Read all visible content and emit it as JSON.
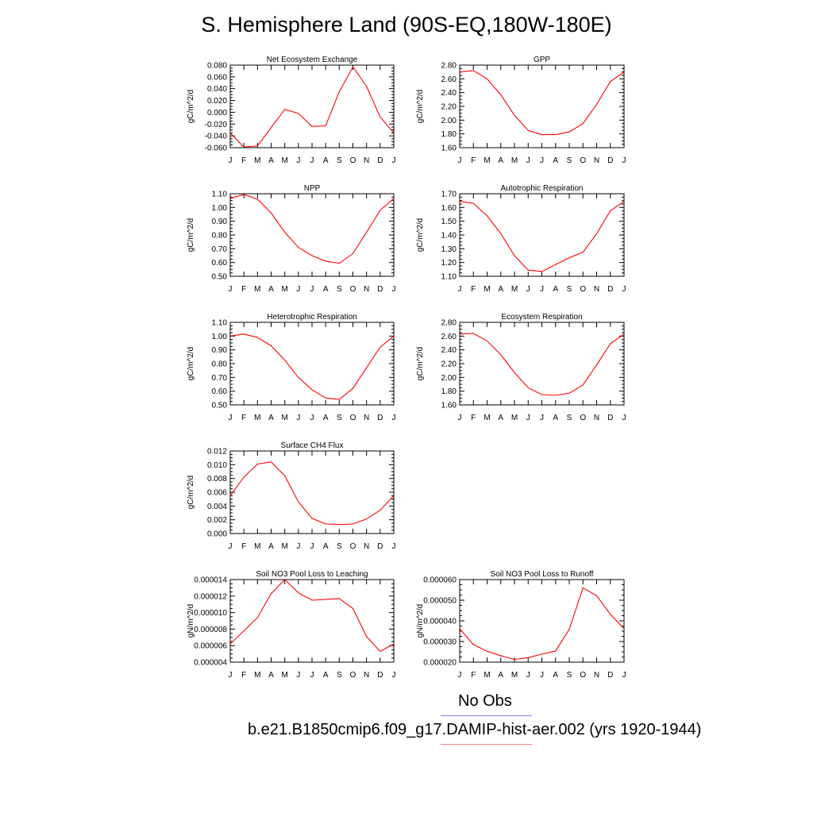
{
  "title": "S. Hemisphere Land (90S-EQ,180W-180E)",
  "months": [
    "J",
    "F",
    "M",
    "A",
    "M",
    "J",
    "J",
    "A",
    "S",
    "O",
    "N",
    "D",
    "J"
  ],
  "colors": {
    "series": "#ff0000",
    "obs_line": "#8080ff",
    "case_line": "#ff8080"
  },
  "legend": {
    "obs_label": "No Obs",
    "case_label": "b.e21.B1850cmip6.f09_g17.DAMIP-hist-aer.002 (yrs 1920-1944)"
  },
  "chart_data": [
    {
      "type": "line",
      "title": "Net Ecosystem Exchange",
      "ylabel": "gC/m^2/d",
      "ylim": [
        -0.06,
        0.08
      ],
      "yticks": [
        "-0.060",
        "-0.040",
        "-0.020",
        "0.000",
        "0.020",
        "0.040",
        "0.060",
        "0.080"
      ],
      "series": [
        {
          "values": [
            -0.035,
            -0.059,
            -0.057,
            -0.026,
            0.005,
            -0.002,
            -0.024,
            -0.023,
            0.035,
            0.077,
            0.044,
            -0.008,
            -0.035
          ]
        }
      ]
    },
    {
      "type": "line",
      "title": "GPP",
      "ylabel": "gC/m^2/d",
      "ylim": [
        1.6,
        2.8
      ],
      "yticks": [
        "1.60",
        "1.80",
        "2.00",
        "2.20",
        "2.40",
        "2.60",
        "2.80"
      ],
      "series": [
        {
          "values": [
            2.7,
            2.72,
            2.6,
            2.37,
            2.07,
            1.85,
            1.79,
            1.79,
            1.83,
            1.95,
            2.23,
            2.56,
            2.7
          ]
        }
      ]
    },
    {
      "type": "line",
      "title": "NPP",
      "ylabel": "gC/m^2/d",
      "ylim": [
        0.5,
        1.1
      ],
      "yticks": [
        "0.50",
        "0.60",
        "0.70",
        "0.80",
        "0.90",
        "1.00",
        "1.10"
      ],
      "series": [
        {
          "values": [
            1.065,
            1.095,
            1.06,
            0.96,
            0.82,
            0.71,
            0.65,
            0.61,
            0.595,
            0.665,
            0.82,
            0.98,
            1.065
          ]
        }
      ]
    },
    {
      "type": "line",
      "title": "Autotrophic Respiration",
      "ylabel": "gC/m^2/d",
      "ylim": [
        1.1,
        1.7
      ],
      "yticks": [
        "1.10",
        "1.20",
        "1.30",
        "1.40",
        "1.50",
        "1.60",
        "1.70"
      ],
      "series": [
        {
          "values": [
            1.645,
            1.63,
            1.54,
            1.41,
            1.25,
            1.145,
            1.135,
            1.185,
            1.235,
            1.275,
            1.41,
            1.575,
            1.645
          ]
        }
      ]
    },
    {
      "type": "line",
      "title": "Heterotrophic Respiration",
      "ylabel": "gC/m^2/d",
      "ylim": [
        0.5,
        1.1
      ],
      "yticks": [
        "0.50",
        "0.60",
        "0.70",
        "0.80",
        "0.90",
        "1.00",
        "1.10"
      ],
      "series": [
        {
          "values": [
            1.0,
            1.015,
            0.99,
            0.93,
            0.825,
            0.7,
            0.61,
            0.55,
            0.54,
            0.62,
            0.77,
            0.92,
            1.0
          ]
        }
      ]
    },
    {
      "type": "line",
      "title": "Ecosystem Respiration",
      "ylabel": "gC/m^2/d",
      "ylim": [
        1.6,
        2.8
      ],
      "yticks": [
        "1.60",
        "1.80",
        "2.00",
        "2.20",
        "2.40",
        "2.60",
        "2.80"
      ],
      "series": [
        {
          "values": [
            2.63,
            2.64,
            2.53,
            2.33,
            2.07,
            1.85,
            1.75,
            1.74,
            1.77,
            1.89,
            2.18,
            2.49,
            2.63
          ]
        }
      ]
    },
    {
      "type": "line",
      "title": "Surface CH4 Flux",
      "ylabel": "gC/m^2/d",
      "ylim": [
        0.0,
        0.012
      ],
      "yticks": [
        "0.000",
        "0.002",
        "0.004",
        "0.006",
        "0.008",
        "0.010",
        "0.012"
      ],
      "series": [
        {
          "values": [
            0.0055,
            0.0082,
            0.0101,
            0.0104,
            0.0084,
            0.0046,
            0.0022,
            0.0014,
            0.0013,
            0.0014,
            0.0021,
            0.0034,
            0.0055
          ]
        }
      ]
    },
    {
      "type": "line",
      "title": "Soil NO3 Pool Loss to Leaching",
      "ylabel": "gN/m^2/d",
      "ylim": [
        4e-06,
        1.4e-05
      ],
      "yticks": [
        "0.000004",
        "0.000006",
        "0.000008",
        "0.000010",
        "0.000012",
        "0.000014"
      ],
      "series": [
        {
          "values": [
            6.2e-06,
            7.8e-06,
            9.4e-06,
            1.23e-05,
            1.4e-05,
            1.24e-05,
            1.15e-05,
            1.16e-05,
            1.17e-05,
            1.05e-05,
            7.1e-06,
            5.3e-06,
            6.2e-06
          ]
        }
      ]
    },
    {
      "type": "line",
      "title": "Soil NO3 Pool Loss to Runoff",
      "ylabel": "gN/m^2/d",
      "ylim": [
        2e-05,
        6e-05
      ],
      "yticks": [
        "0.000020",
        "0.000030",
        "0.000040",
        "0.000050",
        "0.000060"
      ],
      "series": [
        {
          "values": [
            3.62e-05,
            2.85e-05,
            2.53e-05,
            2.31e-05,
            2.13e-05,
            2.22e-05,
            2.39e-05,
            2.54e-05,
            3.59e-05,
            5.6e-05,
            5.22e-05,
            4.32e-05,
            3.62e-05
          ]
        }
      ]
    }
  ]
}
